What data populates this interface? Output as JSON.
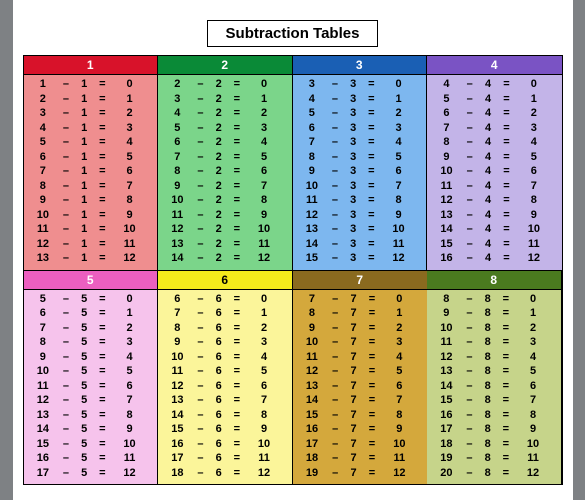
{
  "title": "Subtraction Tables",
  "operator": "–",
  "equals": "=",
  "panels": [
    {
      "n": 1,
      "label": "1",
      "header_bg": "#d8122a",
      "body_bg": "#ef8e8f",
      "header_color": "#ffffff",
      "start": 1,
      "end": 13
    },
    {
      "n": 2,
      "label": "2",
      "header_bg": "#0a8a37",
      "body_bg": "#7bd58a",
      "header_color": "#ffffff",
      "start": 2,
      "end": 14
    },
    {
      "n": 3,
      "label": "3",
      "header_bg": "#1a5fb4",
      "body_bg": "#7db7ef",
      "header_color": "#ffffff",
      "start": 3,
      "end": 15
    },
    {
      "n": 4,
      "label": "4",
      "header_bg": "#7a53c4",
      "body_bg": "#c3b4e8",
      "header_color": "#ffffff",
      "start": 4,
      "end": 16
    },
    {
      "n": 5,
      "label": "5",
      "header_bg": "#ec5fc0",
      "body_bg": "#f6c3ec",
      "header_color": "#ffffff",
      "start": 5,
      "end": 17
    },
    {
      "n": 6,
      "label": "6",
      "header_bg": "#f4ea1c",
      "body_bg": "#fbf59a",
      "header_color": "#000000",
      "start": 6,
      "end": 18
    },
    {
      "n": 7,
      "label": "7",
      "header_bg": "#8a6a1f",
      "body_bg": "#d4a83c",
      "header_color": "#ffffff",
      "start": 7,
      "end": 19
    },
    {
      "n": 8,
      "label": "8",
      "header_bg": "#4a7a1f",
      "body_bg": "#c6d48a",
      "header_color": "#ffffff",
      "start": 8,
      "end": 20
    }
  ]
}
